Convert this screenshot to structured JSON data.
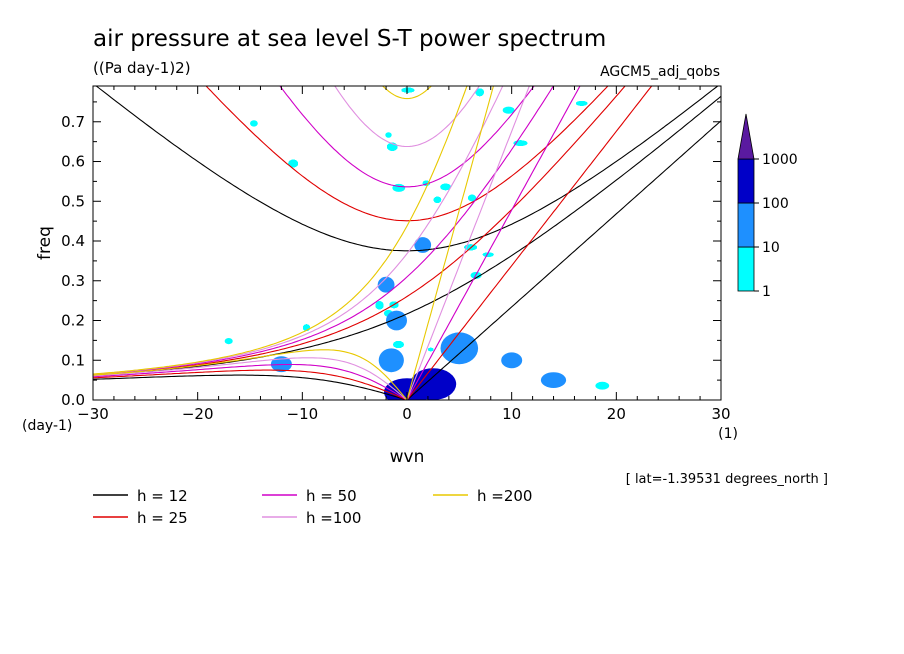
{
  "header": {
    "title": "air pressure at sea level S-T power spectrum",
    "subtitle": "((Pa day-1)2)",
    "run": "AGCM5_adj_qobs"
  },
  "footer": {
    "note": "[ lat=-1.39531 degrees_north ]"
  },
  "chart_data": {
    "type": "heatmap",
    "title": "air pressure at sea level S-T power spectrum",
    "units": "((Pa day-1)2)",
    "xlabel": "wvn",
    "ylabel": "freq",
    "xunit": "(1)",
    "yunit": "(day-1)",
    "xlim": [
      -30,
      30
    ],
    "ylim": [
      0,
      0.79
    ],
    "xticks": [
      -30,
      -20,
      -10,
      0,
      10,
      20,
      30
    ],
    "xtick_labels": [
      "−30",
      "−20",
      "−10",
      "0",
      "10",
      "20",
      "30"
    ],
    "yticks": [
      0,
      0.1,
      0.2,
      0.3,
      0.4,
      0.5,
      0.6,
      0.7
    ],
    "ytick_labels": [
      "0.0",
      "0.1",
      "0.2",
      "0.3",
      "0.4",
      "0.5",
      "0.6",
      "0.7"
    ],
    "colorbar": {
      "levels": [
        1,
        10,
        100,
        1000
      ],
      "labels": [
        "1",
        "10",
        "100",
        "1000"
      ],
      "colors": [
        "#00ffff",
        "#1e90ff",
        "#0000c8",
        "#5a1aa0"
      ]
    },
    "blobs": [
      {
        "x": 0,
        "y": 0.02,
        "rx": 2.2,
        "ry": 0.035,
        "level": 2
      },
      {
        "x": 2.5,
        "y": 0.04,
        "rx": 2.2,
        "ry": 0.04,
        "level": 2
      },
      {
        "x": 5,
        "y": 0.13,
        "rx": 1.8,
        "ry": 0.04,
        "level": 1
      },
      {
        "x": -1.5,
        "y": 0.1,
        "rx": 1.2,
        "ry": 0.03,
        "level": 1
      },
      {
        "x": -1,
        "y": 0.2,
        "rx": 1,
        "ry": 0.025,
        "level": 1
      },
      {
        "x": -2,
        "y": 0.29,
        "rx": 0.8,
        "ry": 0.02,
        "level": 1
      },
      {
        "x": 1.5,
        "y": 0.39,
        "rx": 0.8,
        "ry": 0.02,
        "level": 1
      },
      {
        "x": -12,
        "y": 0.09,
        "rx": 1,
        "ry": 0.02,
        "level": 1
      },
      {
        "x": 10,
        "y": 0.1,
        "rx": 1,
        "ry": 0.02,
        "level": 1
      },
      {
        "x": 14,
        "y": 0.05,
        "rx": 1.2,
        "ry": 0.02,
        "level": 1
      }
    ],
    "lines": [
      {
        "name": "h = 12",
        "h": 12,
        "color": "#000000"
      },
      {
        "name": "h = 25",
        "h": 25,
        "color": "#e00000"
      },
      {
        "name": "h = 50",
        "h": 50,
        "color": "#d000c8"
      },
      {
        "name": "h =100",
        "h": 100,
        "color": "#e090e0"
      },
      {
        "name": "h =200",
        "h": 200,
        "color": "#e8c800"
      }
    ]
  }
}
